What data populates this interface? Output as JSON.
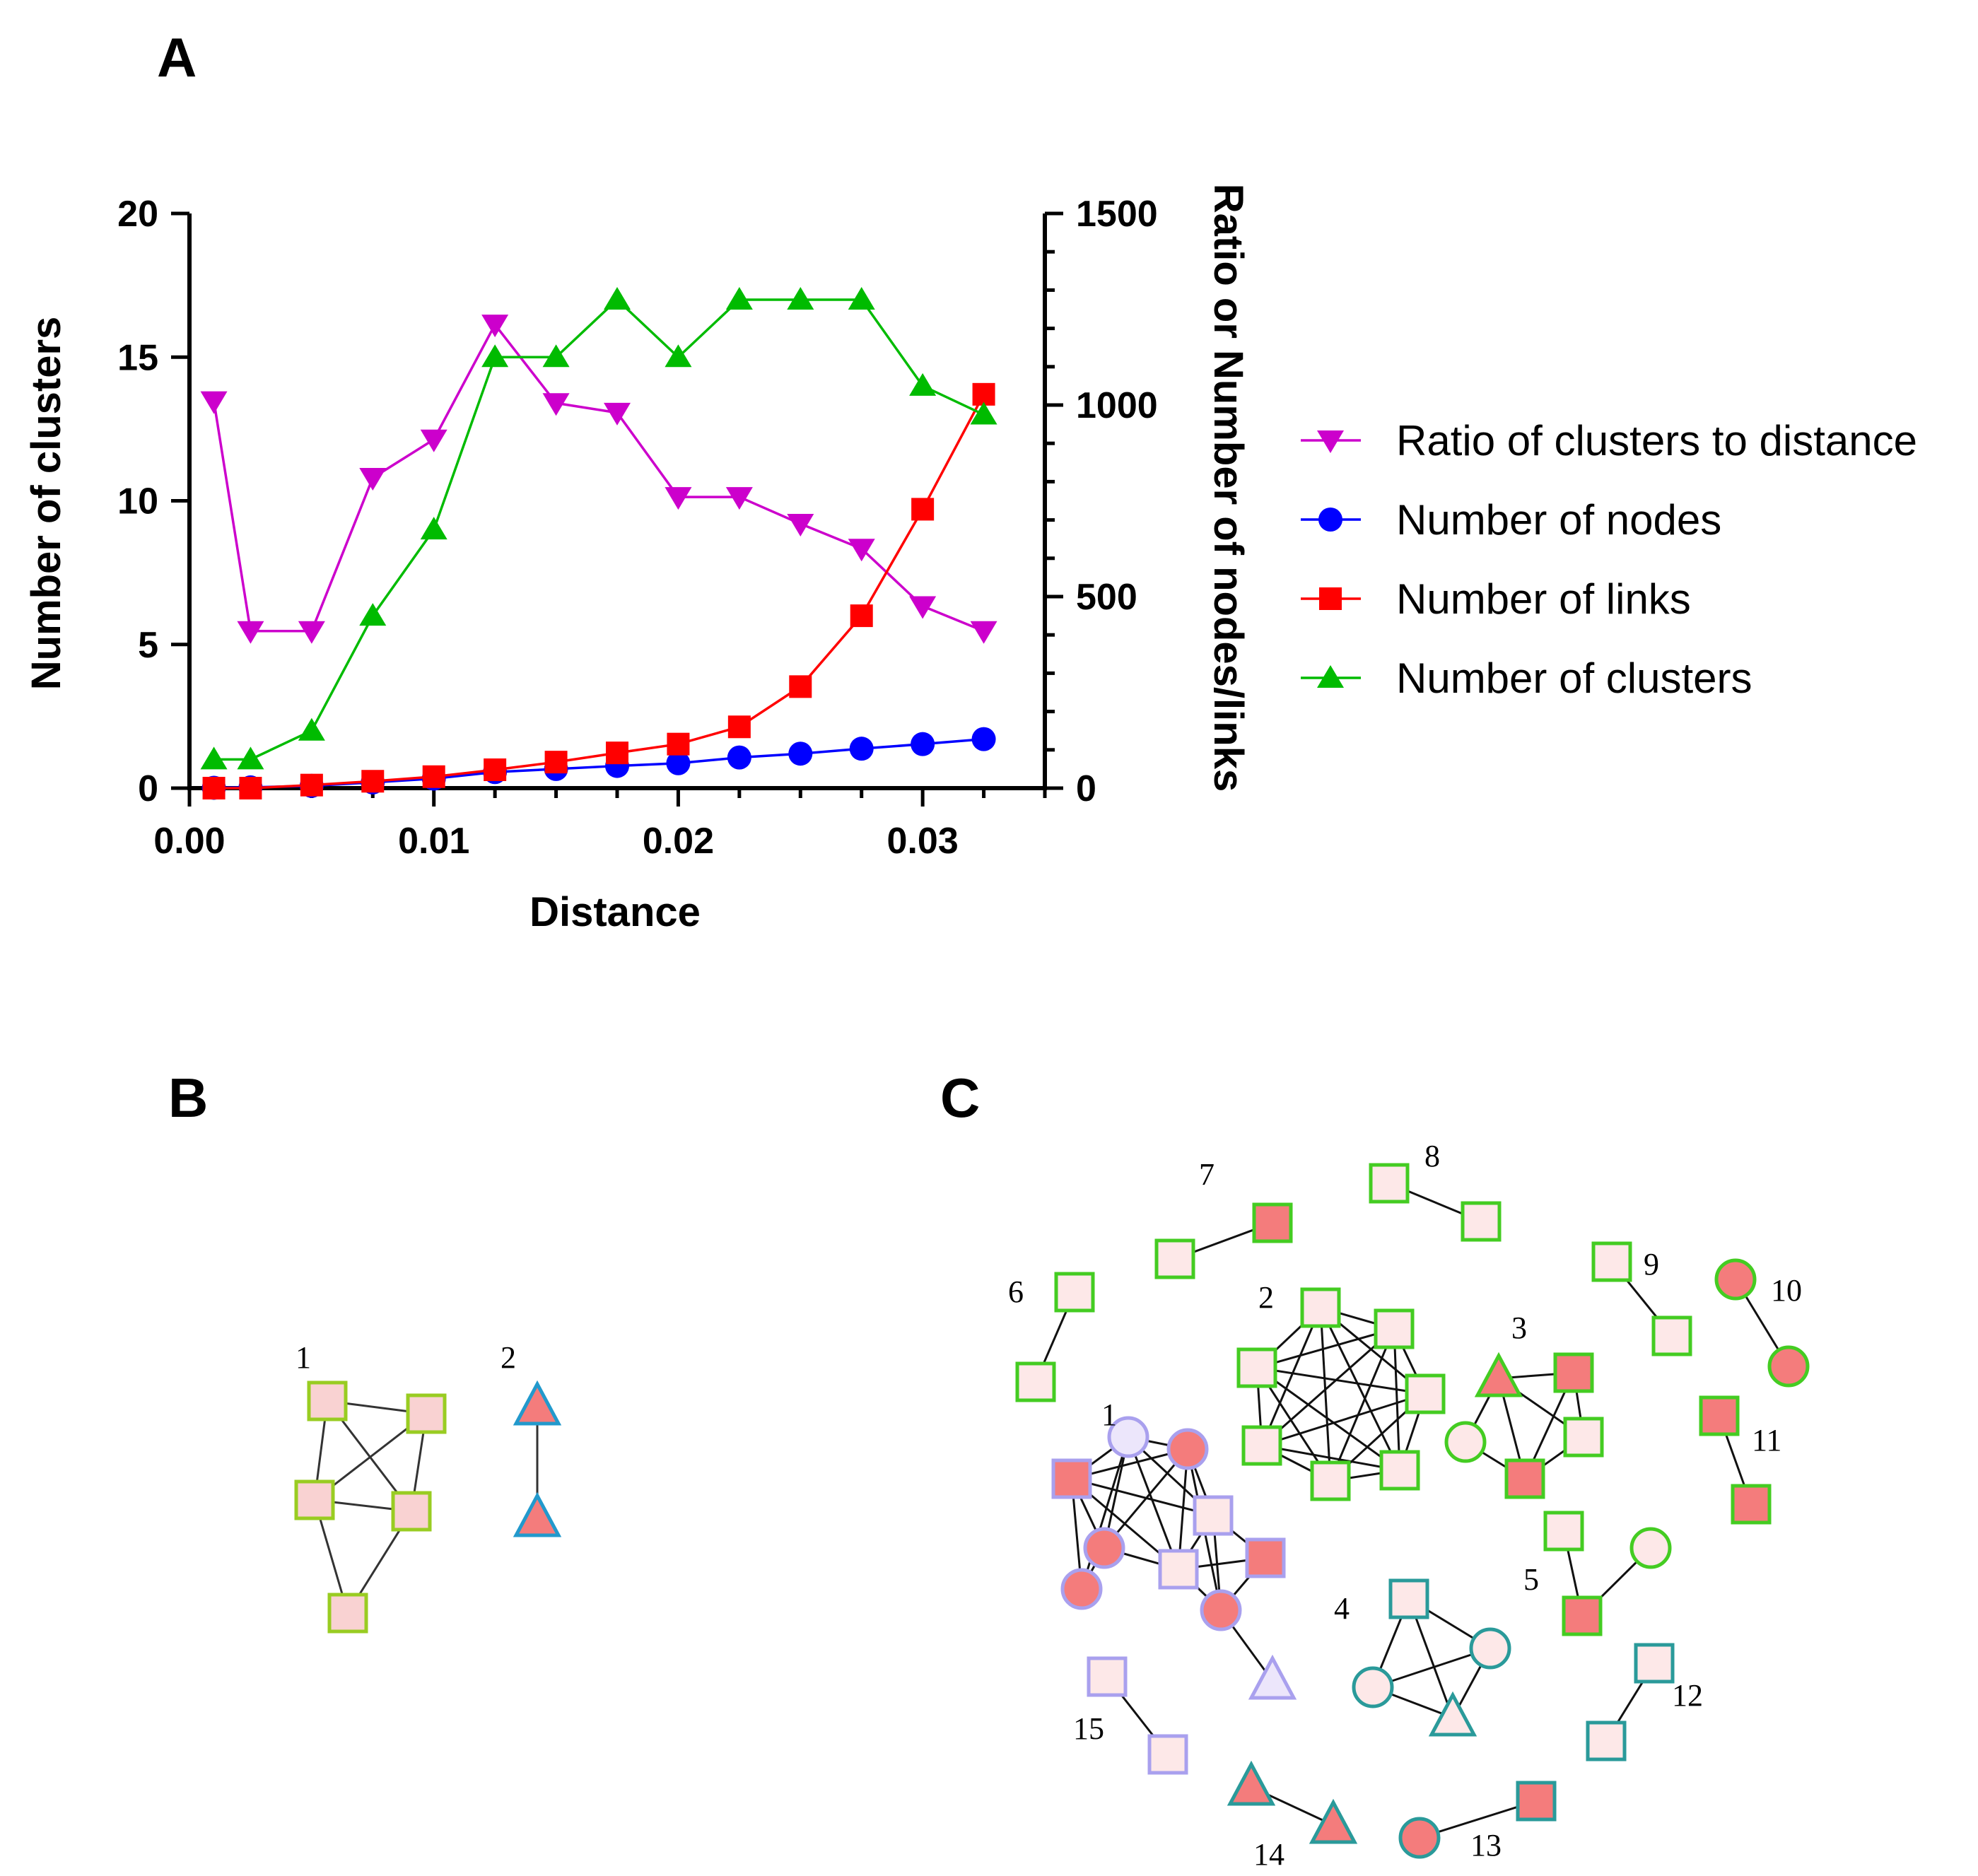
{
  "figure": {
    "panels": {
      "a": "A",
      "b": "B",
      "c": "C"
    }
  },
  "chart_data": {
    "type": "line",
    "xlabel": "Distance",
    "ylabel_left": "Number of clusters",
    "ylabel_right": "Ratio or Number of nodes/links",
    "xlim": [
      0.0,
      0.035
    ],
    "ylim_left": [
      0,
      20
    ],
    "ylim_right": [
      0,
      1500
    ],
    "x_ticks": [
      0.0,
      0.01,
      0.02,
      0.03
    ],
    "x_tick_labels": [
      "0.00",
      "0.01",
      "0.02",
      "0.03"
    ],
    "y_left_ticks": [
      0,
      5,
      10,
      15,
      20
    ],
    "y_left_tick_labels": [
      "0",
      "5",
      "10",
      "15",
      "20"
    ],
    "y_right_ticks": [
      0,
      500,
      1000,
      1500
    ],
    "y_right_tick_labels": [
      "0",
      "500",
      "1000",
      "1500"
    ],
    "x": [
      0.001,
      0.0025,
      0.005,
      0.0075,
      0.01,
      0.0125,
      0.015,
      0.0175,
      0.02,
      0.0225,
      0.025,
      0.0275,
      0.03,
      0.0325
    ],
    "series": [
      {
        "name": "Ratio of clusters to distance",
        "axis": "right",
        "marker": "triangle-down",
        "color": "#cc00cc",
        "values": [
          1010,
          410,
          410,
          810,
          910,
          1210,
          1005,
          980,
          760,
          760,
          690,
          625,
          475,
          410
        ]
      },
      {
        "name": "Number of nodes",
        "axis": "right",
        "marker": "circle",
        "color": "#0000ff",
        "values": [
          1,
          2,
          6,
          15,
          25,
          42,
          50,
          58,
          65,
          80,
          90,
          103,
          115,
          128
        ]
      },
      {
        "name": "Number of links",
        "axis": "right",
        "marker": "square",
        "color": "#ff0000",
        "values": [
          0,
          0,
          8,
          18,
          30,
          48,
          68,
          92,
          115,
          160,
          265,
          450,
          728,
          1028
        ]
      },
      {
        "name": "Number of clusters",
        "axis": "left",
        "marker": "triangle-up",
        "color": "#00bb00",
        "values": [
          1,
          1,
          2,
          6,
          9,
          15,
          15,
          17,
          15,
          17,
          17,
          17,
          14,
          13
        ]
      }
    ],
    "legend": "right"
  },
  "network_b": {
    "labels": [
      "1",
      "2"
    ]
  },
  "network_c": {
    "labels": [
      "1",
      "2",
      "3",
      "4",
      "5",
      "6",
      "7",
      "8",
      "9",
      "10",
      "11",
      "12",
      "13",
      "14",
      "15"
    ]
  }
}
